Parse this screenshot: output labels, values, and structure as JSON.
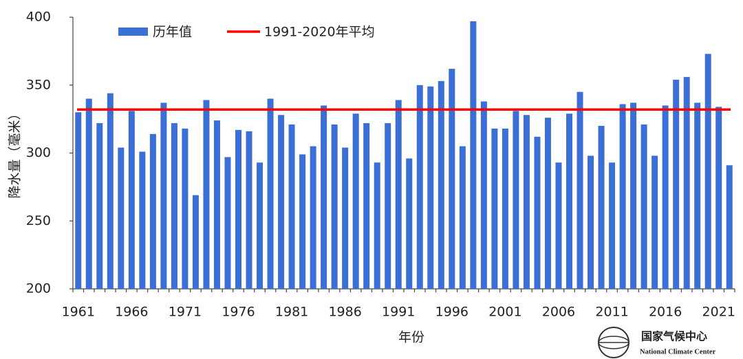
{
  "chart_data": {
    "type": "bar",
    "y_label": "降水量（毫米）",
    "x_label": "年份",
    "categories": [
      "1961",
      null,
      null,
      null,
      null,
      "1966",
      null,
      null,
      null,
      null,
      "1971",
      null,
      null,
      null,
      null,
      "1976",
      null,
      null,
      null,
      null,
      "1981",
      null,
      null,
      null,
      null,
      "1986",
      null,
      null,
      null,
      null,
      "1991",
      null,
      null,
      null,
      null,
      "1996",
      null,
      null,
      null,
      null,
      "2001",
      null,
      null,
      null,
      null,
      "2006",
      null,
      null,
      null,
      null,
      "2011",
      null,
      null,
      null,
      null,
      "2016",
      null,
      null,
      null,
      null,
      "2021",
      null
    ],
    "series": [
      {
        "name": "历年值",
        "color": "#3c6fd6",
        "values": [
          330,
          340,
          322,
          344,
          304,
          331,
          301,
          314,
          337,
          322,
          318,
          269,
          339,
          324,
          297,
          317,
          316,
          293,
          340,
          328,
          321,
          299,
          305,
          335,
          321,
          304,
          329,
          322,
          293,
          322,
          339,
          296,
          350,
          349,
          353,
          362,
          305,
          397,
          338,
          318,
          318,
          331,
          328,
          312,
          326,
          293,
          329,
          345,
          298,
          320,
          293,
          336,
          337,
          321,
          298,
          335,
          354,
          356,
          337,
          373,
          334,
          291
        ]
      }
    ],
    "reference_line": {
      "name": "1991-2020年平均",
      "value": 332,
      "color": "#ff0000"
    },
    "ylim": [
      200,
      400
    ],
    "yticks": [
      200,
      250,
      300,
      350,
      400
    ],
    "grid": false,
    "source": "国家气候中心",
    "source_en": "National Climate Center"
  }
}
